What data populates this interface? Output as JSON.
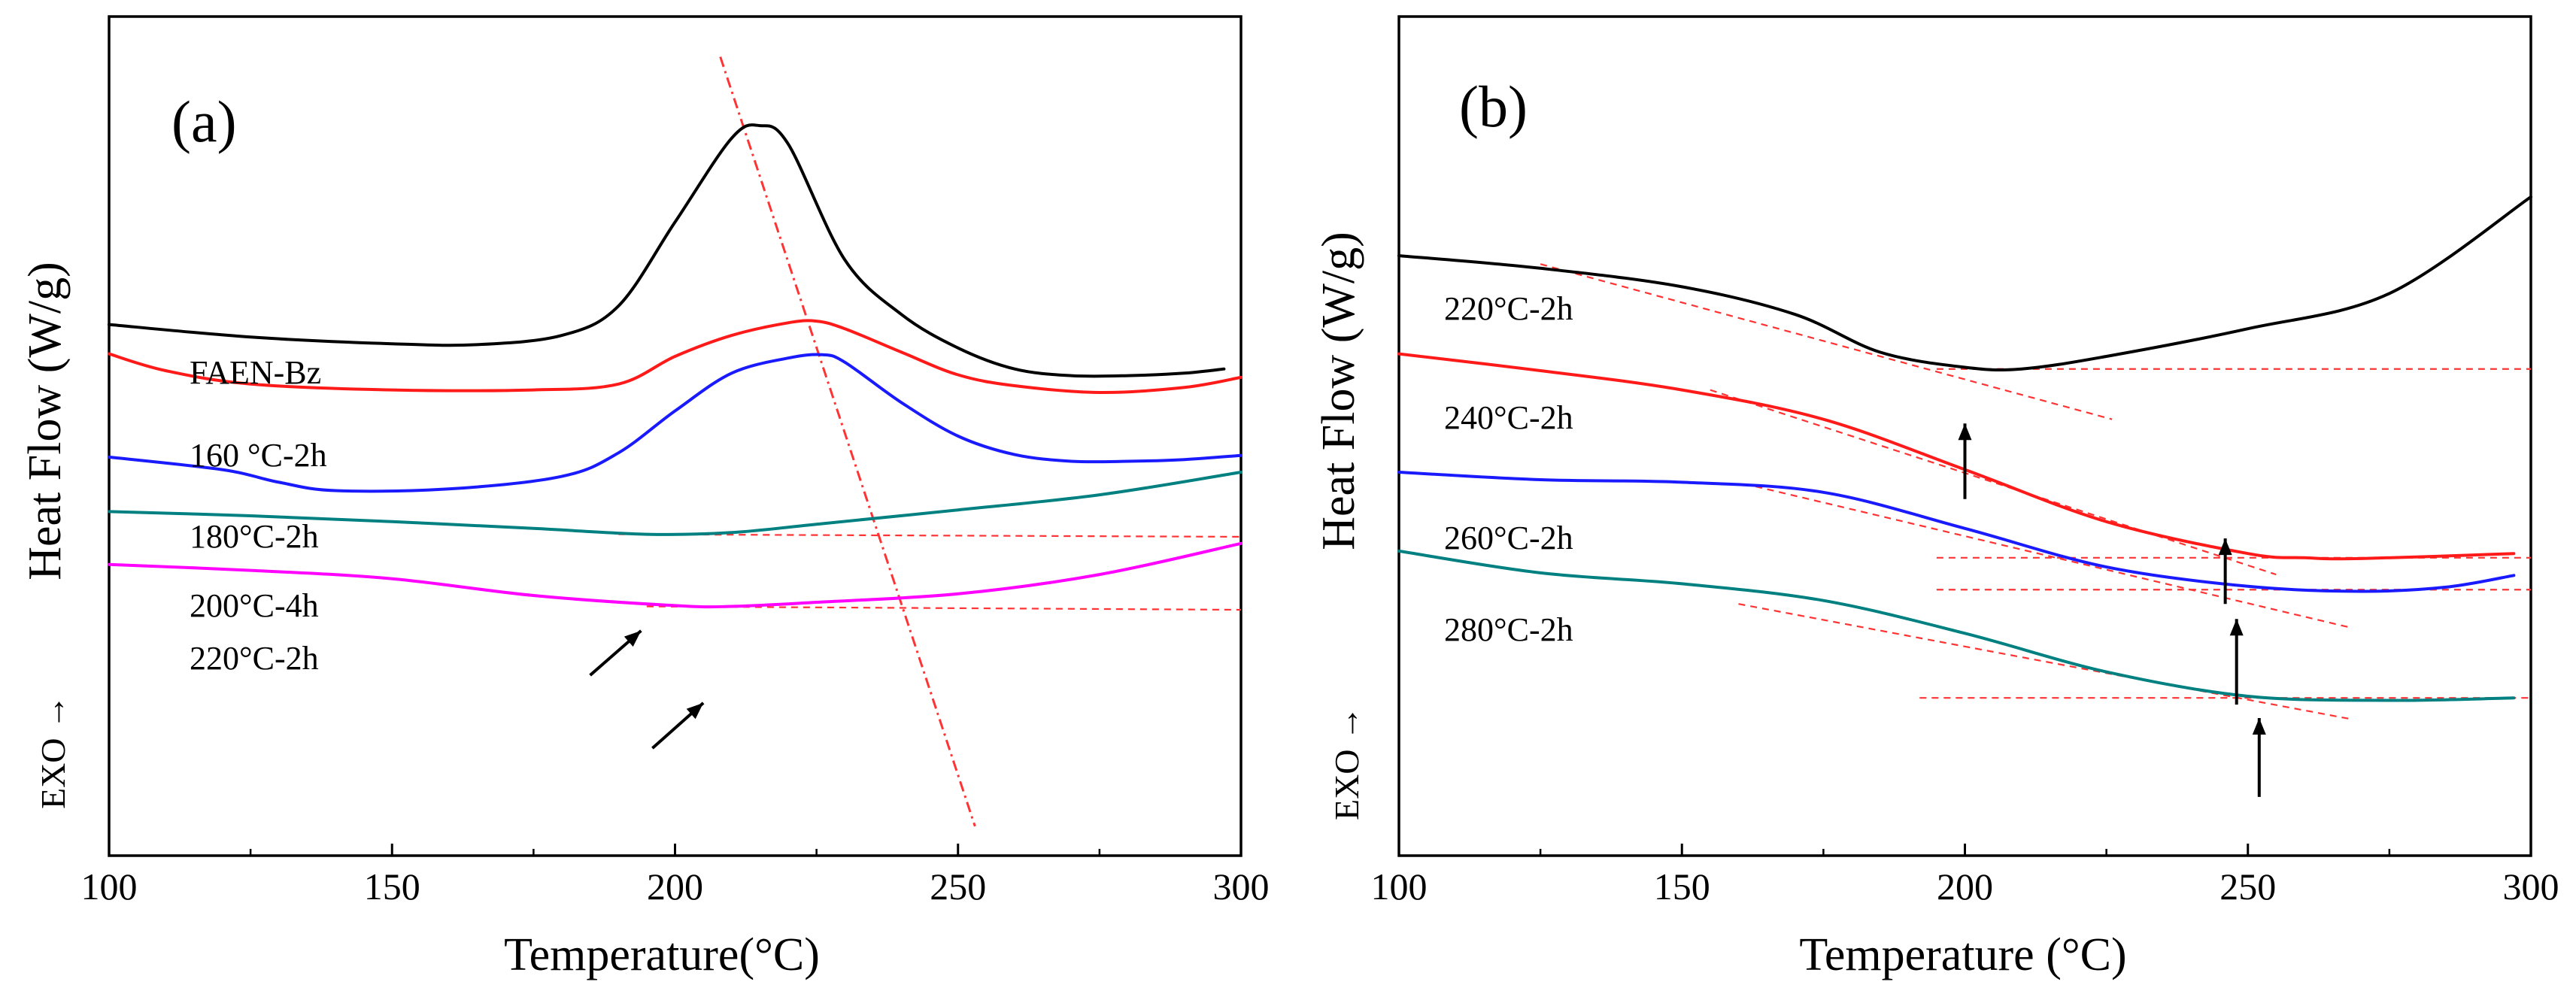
{
  "chart_data": [
    {
      "panel": "a",
      "type": "line",
      "panel_label": "(a)",
      "xlabel": "Temperature(°C)",
      "ylabel": "Heat Flow (W/g)",
      "exo_label": "EXO →",
      "xlim": [
        100,
        300
      ],
      "xticks": [
        100,
        150,
        200,
        250,
        300
      ],
      "ylim": [
        0,
        10
      ],
      "grid": false,
      "colors": {
        "FAEN-Bz": "#000000",
        "160 °C-2h": "#ff1a1a",
        "180°C-2h": "#1a1aff",
        "200°C-4h": "#008080",
        "220°C-2h": "#ff00ff",
        "guides": "#ff3333"
      },
      "series": [
        {
          "name": "FAEN-Bz",
          "label": "FAEN-Bz",
          "x": [
            100,
            125,
            150,
            165,
            180,
            190,
            200,
            210,
            215,
            220,
            230,
            240,
            250,
            260,
            270,
            280,
            290,
            297
          ],
          "y": [
            6.33,
            6.18,
            6.1,
            6.09,
            6.2,
            6.55,
            7.55,
            8.55,
            8.7,
            8.48,
            7.1,
            6.45,
            6.05,
            5.8,
            5.72,
            5.72,
            5.75,
            5.8
          ]
        },
        {
          "name": "160 °C-2h",
          "label": "160 °C-2h",
          "x": [
            100,
            110,
            125,
            150,
            175,
            190,
            200,
            210,
            220,
            225,
            230,
            240,
            250,
            260,
            275,
            290,
            300
          ],
          "y": [
            5.98,
            5.78,
            5.62,
            5.55,
            5.55,
            5.62,
            5.95,
            6.2,
            6.35,
            6.37,
            6.28,
            6.0,
            5.73,
            5.6,
            5.52,
            5.58,
            5.7
          ]
        },
        {
          "name": "180°C-2h",
          "label": "180°C-2h",
          "x": [
            100,
            120,
            130,
            140,
            160,
            180,
            190,
            200,
            210,
            220,
            226,
            230,
            240,
            250,
            260,
            270,
            280,
            290,
            300
          ],
          "y": [
            4.75,
            4.6,
            4.45,
            4.35,
            4.37,
            4.52,
            4.8,
            5.3,
            5.75,
            5.93,
            5.97,
            5.88,
            5.4,
            5.0,
            4.78,
            4.7,
            4.7,
            4.72,
            4.77
          ]
        },
        {
          "name": "200°C-4h",
          "label": "200°C-4h",
          "x": [
            100,
            125,
            150,
            175,
            195,
            210,
            225,
            250,
            275,
            300
          ],
          "y": [
            4.1,
            4.05,
            3.98,
            3.9,
            3.83,
            3.85,
            3.95,
            4.12,
            4.3,
            4.57
          ]
        },
        {
          "name": "220°C-2h",
          "label": "220°C-2h",
          "x": [
            100,
            125,
            150,
            175,
            200,
            210,
            225,
            250,
            275,
            300
          ],
          "y": [
            3.47,
            3.4,
            3.3,
            3.1,
            2.98,
            2.97,
            3.02,
            3.12,
            3.35,
            3.72
          ]
        }
      ],
      "guides": [
        {
          "type": "peak-shift",
          "x": [
            208,
            253
          ],
          "y": [
            9.52,
            0.35
          ]
        },
        {
          "type": "baseline",
          "x": [
            190,
            300
          ],
          "y": [
            3.83,
            3.8
          ]
        },
        {
          "type": "baseline",
          "x": [
            195,
            300
          ],
          "y": [
            2.97,
            2.93
          ]
        }
      ],
      "arrows": [
        {
          "from": [
            185,
            2.15
          ],
          "to": [
            194,
            2.68
          ]
        },
        {
          "from": [
            196,
            1.28
          ],
          "to": [
            205,
            1.82
          ]
        }
      ],
      "annotations": [
        "FAEN-Bz",
        "160 °C-2h",
        "180°C-2h",
        "200°C-4h",
        "220°C-2h"
      ]
    },
    {
      "panel": "b",
      "type": "line",
      "panel_label": "(b)",
      "xlabel": "Temperature (°C)",
      "ylabel": "Heat Flow (W/g)",
      "exo_label": "EXO →",
      "xlim": [
        100,
        300
      ],
      "xticks": [
        100,
        150,
        200,
        250,
        300
      ],
      "ylim": [
        0,
        10
      ],
      "grid": false,
      "colors": {
        "220°C-2h": "#000000",
        "240°C-2h": "#ff1a1a",
        "260°C-2h": "#1a1aff",
        "280°C-2h": "#008080",
        "guides": "#ff3333"
      },
      "series": [
        {
          "name": "220°C-2h",
          "label": "220°C-2h",
          "x": [
            100,
            125,
            150,
            170,
            185,
            200,
            210,
            225,
            250,
            275,
            300
          ],
          "y": [
            7.15,
            7.0,
            6.78,
            6.45,
            6.0,
            5.82,
            5.8,
            5.95,
            6.28,
            6.7,
            7.85
          ]
        },
        {
          "name": "240°C-2h",
          "label": "240°C-2h",
          "x": [
            100,
            125,
            150,
            175,
            200,
            225,
            250,
            260,
            270,
            297
          ],
          "y": [
            5.98,
            5.78,
            5.55,
            5.2,
            4.6,
            3.98,
            3.6,
            3.55,
            3.54,
            3.6
          ]
        },
        {
          "name": "260°C-2h",
          "label": "260°C-2h",
          "x": [
            100,
            125,
            150,
            175,
            200,
            225,
            250,
            270,
            285,
            297
          ],
          "y": [
            4.57,
            4.48,
            4.45,
            4.33,
            3.9,
            3.44,
            3.21,
            3.15,
            3.2,
            3.34
          ]
        },
        {
          "name": "280°C-2h",
          "label": "280°C-2h",
          "x": [
            100,
            125,
            150,
            175,
            200,
            225,
            250,
            275,
            297
          ],
          "y": [
            3.63,
            3.37,
            3.24,
            3.04,
            2.65,
            2.19,
            1.9,
            1.85,
            1.88
          ]
        }
      ],
      "guides": [
        {
          "type": "tangent",
          "x": [
            125,
            226
          ],
          "y": [
            7.05,
            5.2
          ]
        },
        {
          "type": "baseline",
          "x": [
            195,
            300
          ],
          "y": [
            5.8,
            5.8
          ]
        },
        {
          "type": "tangent",
          "x": [
            155,
            255
          ],
          "y": [
            5.55,
            3.35
          ]
        },
        {
          "type": "baseline",
          "x": [
            195,
            300
          ],
          "y": [
            3.55,
            3.55
          ]
        },
        {
          "type": "tangent",
          "x": [
            163,
            268
          ],
          "y": [
            4.4,
            2.72
          ]
        },
        {
          "type": "baseline",
          "x": [
            195,
            300
          ],
          "y": [
            3.17,
            3.17
          ]
        },
        {
          "type": "tangent",
          "x": [
            160,
            268
          ],
          "y": [
            3.0,
            1.63
          ]
        },
        {
          "type": "baseline",
          "x": [
            192,
            300
          ],
          "y": [
            1.88,
            1.88
          ]
        }
      ],
      "arrows": [
        {
          "from": [
            200,
            4.25
          ],
          "to": [
            200,
            5.15
          ]
        },
        {
          "from": [
            246,
            3.0
          ],
          "to": [
            246,
            3.78
          ]
        },
        {
          "from": [
            248,
            1.8
          ],
          "to": [
            248,
            2.82
          ]
        },
        {
          "from": [
            252,
            0.7
          ],
          "to": [
            252,
            1.64
          ]
        }
      ],
      "annotations": [
        "220°C-2h",
        "240°C-2h",
        "260°C-2h",
        "280°C-2h"
      ]
    }
  ]
}
